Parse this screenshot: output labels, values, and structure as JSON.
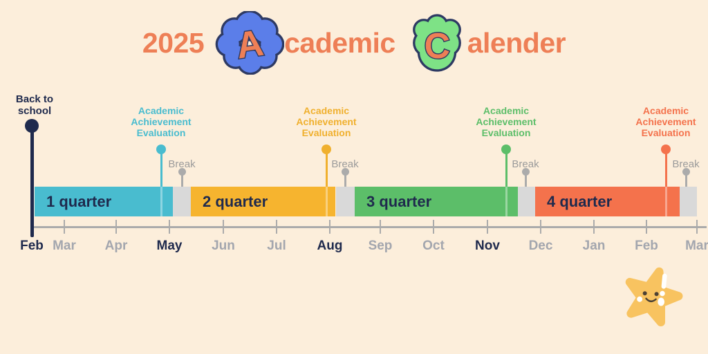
{
  "title": {
    "year": "2025",
    "academic_initial": "A",
    "academic_rest": "cademic",
    "calender_initial": "C",
    "calender_rest": "alender"
  },
  "annotations": {
    "back_to_school": {
      "line1": "Back to",
      "line2": "school"
    },
    "evaluation_lines": [
      "Academic",
      "Achievement",
      "Evaluation"
    ]
  },
  "timeline": {
    "quarters": [
      {
        "label": "1 quarter",
        "color": "#49BCCF"
      },
      {
        "label": "2 quarter",
        "color": "#F6B42F"
      },
      {
        "label": "3 quarter",
        "color": "#5CBE69"
      },
      {
        "label": "4 quarter",
        "color": "#F4724C"
      }
    ],
    "evaluations": [
      {
        "color": "#49BCCF"
      },
      {
        "color": "#F0B02E"
      },
      {
        "color": "#5CBE69"
      },
      {
        "color": "#F4724C"
      }
    ],
    "breaks": [
      "Break",
      "Break",
      "Break",
      "Break"
    ],
    "months": [
      {
        "label": "Feb",
        "emphasized": true
      },
      {
        "label": "Mar",
        "emphasized": false
      },
      {
        "label": "Apr",
        "emphasized": false
      },
      {
        "label": "May",
        "emphasized": true
      },
      {
        "label": "Jun",
        "emphasized": false
      },
      {
        "label": "Jul",
        "emphasized": false
      },
      {
        "label": "Aug",
        "emphasized": true
      },
      {
        "label": "Sep",
        "emphasized": false
      },
      {
        "label": "Oct",
        "emphasized": false
      },
      {
        "label": "Nov",
        "emphasized": true
      },
      {
        "label": "Dec",
        "emphasized": false
      },
      {
        "label": "Jan",
        "emphasized": false
      },
      {
        "label": "Feb",
        "emphasized": false
      },
      {
        "label": "Mar",
        "emphasized": false
      }
    ]
  },
  "colors": {
    "background": "#FCEEDB",
    "title_text": "#EE7F56",
    "badge_a_fill": "#5B7EE9",
    "badge_c_fill": "#7EE286",
    "badge_outline": "#2E3A63",
    "navy_text": "#1F2A4D",
    "muted_month_text": "#A3A6AE",
    "break_text": "#9B9B9B",
    "break_segment": "#D9D9D9",
    "axis": "#ABABAB",
    "star_body": "#F8C360"
  },
  "mascot": {
    "name": "smiling-star"
  }
}
